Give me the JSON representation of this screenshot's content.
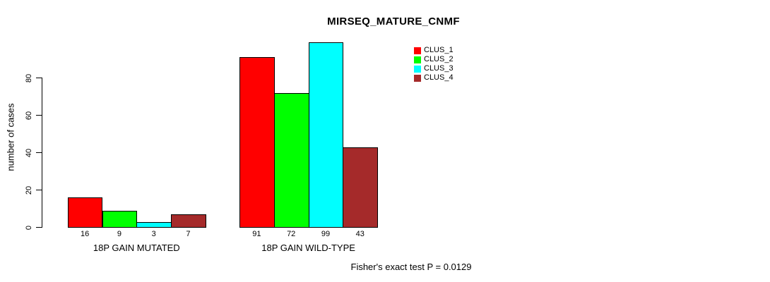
{
  "chart_data": {
    "type": "bar",
    "title": "MIRSEQ_MATURE_CNMF",
    "subtitle": "Fisher's exact test P = 0.0129",
    "ylabel": "number of cases",
    "xlabel": "",
    "ylim": [
      0,
      99
    ],
    "yticks": [
      0,
      20,
      40,
      60,
      80
    ],
    "grid": false,
    "legend_position": "top-right",
    "values_shown_under_bars": true,
    "categories": [
      "18P GAIN MUTATED",
      "18P GAIN WILD-TYPE"
    ],
    "series": [
      {
        "name": "CLUS_1",
        "color": "#FF0000",
        "values": [
          16,
          91
        ]
      },
      {
        "name": "CLUS_2",
        "color": "#00FF00",
        "values": [
          9,
          72
        ]
      },
      {
        "name": "CLUS_3",
        "color": "#00FFFF",
        "values": [
          3,
          99
        ]
      },
      {
        "name": "CLUS_4",
        "color": "#A52A2A",
        "values": [
          7,
          43
        ]
      }
    ]
  },
  "colors": {
    "background": "#FFFFFF",
    "axis": "#000000",
    "bar_border": "#000000",
    "text": "#000000"
  }
}
